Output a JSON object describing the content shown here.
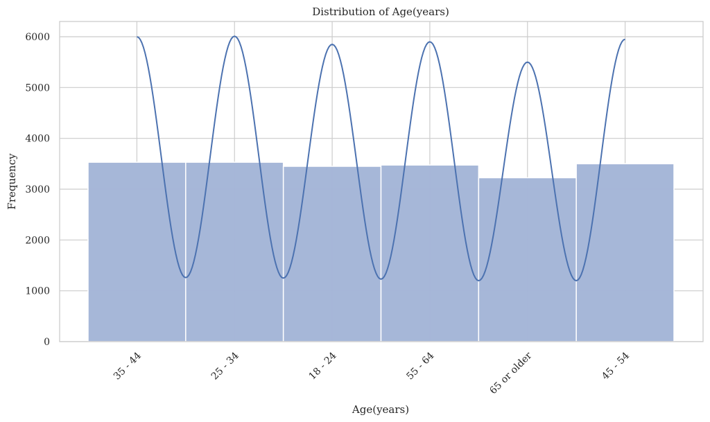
{
  "chart_data": {
    "type": "bar",
    "title": "Distribution of Age(years)",
    "xlabel": "Age(years)",
    "ylabel": "Frequency",
    "categories": [
      "35 - 44",
      "25 - 34",
      "18 - 24",
      "55 - 64",
      "65 or older",
      "45 - 54"
    ],
    "values": [
      3530,
      3530,
      3450,
      3475,
      3225,
      3500
    ],
    "ylim": [
      0,
      6300
    ],
    "yticks": [
      "0",
      "1000",
      "2000",
      "3000",
      "4000",
      "5000",
      "6000"
    ],
    "grid": true,
    "kde": {
      "peaks": [
        6000,
        6010,
        5850,
        5900,
        5500,
        5950
      ],
      "troughs": [
        1260,
        1250,
        1230,
        1200,
        1200
      ]
    },
    "colors": {
      "bar": "#a4b6d7",
      "line": "#4c72b0",
      "grid": "#cccccc",
      "spine": "#cccccc"
    }
  }
}
